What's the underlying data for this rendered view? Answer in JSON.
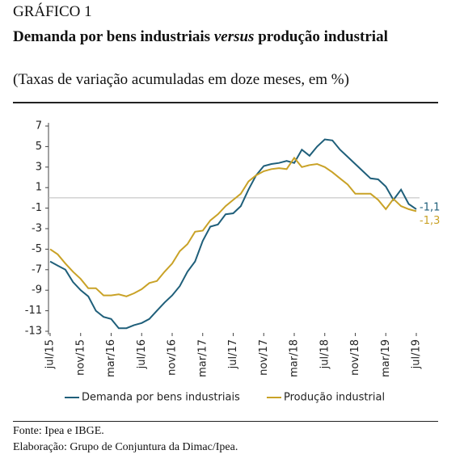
{
  "header": {
    "label": "GRÁFICO 1",
    "title": [
      "Demanda por bens industriais",
      "versus",
      "produção industrial"
    ],
    "subtitle": "(Taxas de variação acumuladas em doze meses, em %)"
  },
  "chart_data": {
    "type": "line",
    "categories": [
      "jul/15",
      null,
      null,
      null,
      "nov/15",
      null,
      null,
      null,
      "mar/16",
      null,
      null,
      null,
      "jul/16",
      null,
      null,
      null,
      "nov/16",
      null,
      null,
      null,
      "mar/17",
      null,
      null,
      null,
      "jul/17",
      null,
      null,
      null,
      "nov/17",
      null,
      null,
      null,
      "mar/18",
      null,
      null,
      null,
      "jul/18",
      null,
      null,
      null,
      "nov/18",
      null,
      null,
      null,
      "mar/19",
      null,
      null,
      null,
      "jul/19"
    ],
    "series": [
      {
        "name": "Demanda por bens industriais",
        "color": "#1f5f7a",
        "values": [
          -6.2,
          -6.6,
          -7.0,
          -8.2,
          -9.0,
          -9.6,
          -11.0,
          -11.6,
          -11.8,
          -12.7,
          -12.7,
          -12.4,
          -12.2,
          -11.8,
          -11.0,
          -10.2,
          -9.5,
          -8.6,
          -7.2,
          -6.2,
          -4.2,
          -2.8,
          -2.6,
          -1.6,
          -1.5,
          -0.8,
          0.8,
          2.2,
          3.1,
          3.3,
          3.4,
          3.6,
          3.4,
          4.7,
          4.1,
          5.0,
          5.7,
          5.6,
          4.7,
          4.0,
          3.3,
          2.6,
          1.9,
          1.8,
          1.1,
          -0.2,
          0.8,
          -0.6,
          -1.1
        ],
        "value_labels": [
          null,
          null,
          null,
          null,
          null,
          null,
          null,
          null,
          null,
          null,
          null,
          null,
          null,
          null,
          null,
          null,
          null,
          null,
          null,
          null,
          null,
          null,
          null,
          null,
          null,
          null,
          null,
          null,
          null,
          null,
          null,
          null,
          null,
          null,
          null,
          null,
          null,
          null,
          null,
          null,
          null,
          null,
          null,
          null,
          null,
          null,
          null,
          null,
          "-1,1"
        ]
      },
      {
        "name": "Produção industrial",
        "color": "#c9a227",
        "values": [
          -5.0,
          -5.5,
          -6.4,
          -7.2,
          -7.9,
          -8.8,
          -8.8,
          -9.5,
          -9.5,
          -9.4,
          -9.6,
          -9.3,
          -8.9,
          -8.3,
          -8.1,
          -7.2,
          -6.4,
          -5.2,
          -4.5,
          -3.3,
          -3.2,
          -2.2,
          -1.6,
          -0.8,
          -0.2,
          0.4,
          1.6,
          2.2,
          2.6,
          2.8,
          2.9,
          2.8,
          3.9,
          3.0,
          3.2,
          3.3,
          3.0,
          2.5,
          1.9,
          1.3,
          0.4,
          0.4,
          0.4,
          -0.2,
          -1.1,
          -0.1,
          -0.8,
          -1.1,
          -1.3
        ],
        "value_labels": [
          null,
          null,
          null,
          null,
          null,
          null,
          null,
          null,
          null,
          null,
          null,
          null,
          null,
          null,
          null,
          null,
          null,
          null,
          null,
          null,
          null,
          null,
          null,
          null,
          null,
          null,
          null,
          null,
          null,
          null,
          null,
          null,
          null,
          null,
          null,
          null,
          null,
          null,
          null,
          null,
          null,
          null,
          null,
          null,
          null,
          null,
          null,
          null,
          "-1,3"
        ]
      }
    ],
    "ylim": [
      -13,
      7
    ],
    "yticks": [
      7,
      5,
      3,
      1,
      -1,
      -3,
      -5,
      -7,
      -9,
      -11,
      -13
    ],
    "zero_line": true,
    "legend": "bottom"
  },
  "footer": {
    "source": "Fonte: Ipea e IBGE.",
    "credit": "Elaboração: Grupo de Conjuntura da Dimac/Ipea."
  }
}
